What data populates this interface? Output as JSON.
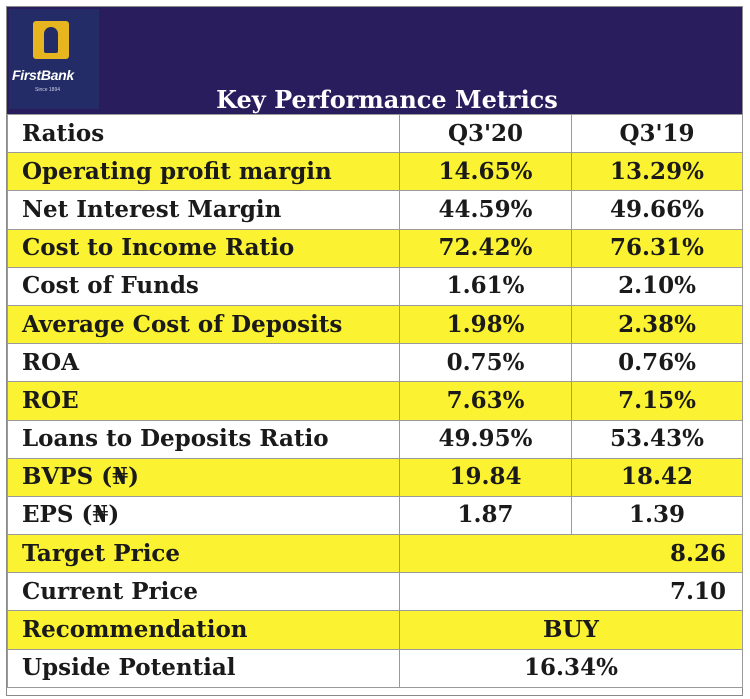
{
  "brand": {
    "name": "FirstBank",
    "tagline": "Since 1894",
    "logo_icon": "elephant-icon",
    "colors": {
      "header": "#2a1d5e",
      "logo_bg": "#232c66",
      "logo_mark": "#e6b520",
      "highlight_row": "#fbf232"
    }
  },
  "title": "Key Performance Metrics",
  "columns": [
    "Ratios",
    "Q3'20",
    "Q3'19"
  ],
  "rows": [
    {
      "label": "Operating profit margin",
      "q3_20": "14.65%",
      "q3_19": "13.29%"
    },
    {
      "label": "Net Interest Margin",
      "q3_20": "44.59%",
      "q3_19": "49.66%"
    },
    {
      "label": "Cost to Income Ratio",
      "q3_20": "72.42%",
      "q3_19": "76.31%"
    },
    {
      "label": "Cost of Funds",
      "q3_20": "1.61%",
      "q3_19": "2.10%"
    },
    {
      "label": "Average Cost of Deposits",
      "q3_20": "1.98%",
      "q3_19": "2.38%"
    },
    {
      "label": "ROA",
      "q3_20": "0.75%",
      "q3_19": "0.76%"
    },
    {
      "label": "ROE",
      "q3_20": "7.63%",
      "q3_19": "7.15%"
    },
    {
      "label": "Loans to Deposits Ratio",
      "q3_20": "49.95%",
      "q3_19": "53.43%"
    },
    {
      "label": "BVPS (₦)",
      "q3_20": "19.84",
      "q3_19": "18.42"
    },
    {
      "label": "EPS (₦)",
      "q3_20": "1.87",
      "q3_19": "1.39"
    }
  ],
  "summary": [
    {
      "label": "Target Price",
      "value": "8.26"
    },
    {
      "label": "Current Price",
      "value": "7.10"
    },
    {
      "label": "Recommendation",
      "value": "BUY"
    },
    {
      "label": "Upside Potential",
      "value": "16.34%"
    }
  ]
}
